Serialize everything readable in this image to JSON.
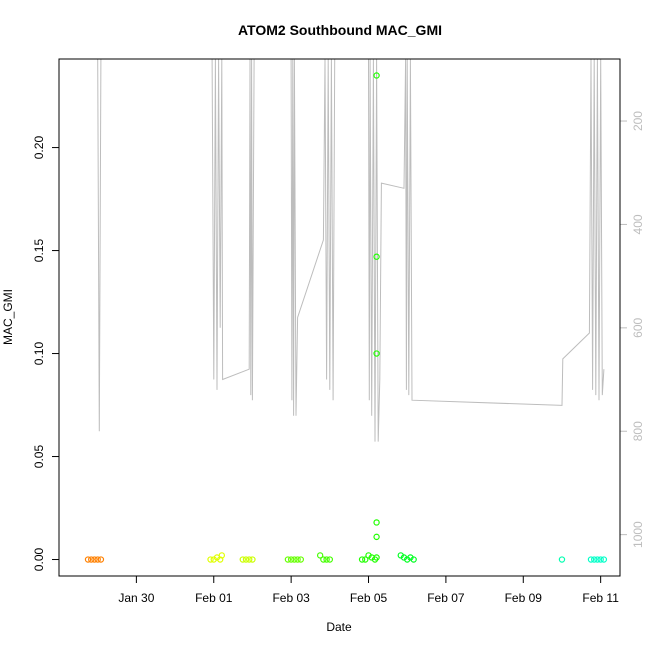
{
  "chart_data": {
    "type": "scatter",
    "title": "ATOM2 Southbound MAC_GMI",
    "xlabel": "Date",
    "ylabel": "MAC_GMI",
    "xlim": [
      "2022-01-28",
      "2022-02-11 12:00"
    ],
    "ylim": [
      -0.008,
      0.243
    ],
    "y_ticks": [
      "0.00",
      "0.05",
      "0.10",
      "0.15",
      "0.20"
    ],
    "x_tick_labels": [
      {
        "date": "2022-01-30",
        "label": "Jan 30"
      },
      {
        "date": "2022-02-01",
        "label": "Feb 01"
      },
      {
        "date": "2022-02-03",
        "label": "Feb 03"
      },
      {
        "date": "2022-02-05",
        "label": "Feb 05"
      },
      {
        "date": "2022-02-07",
        "label": "Feb 07"
      },
      {
        "date": "2022-02-09",
        "label": "Feb 09"
      },
      {
        "date": "2022-02-11",
        "label": "Feb 11"
      }
    ],
    "right_axis": {
      "reversed": true,
      "range": [
        80,
        1080
      ],
      "ticks": [
        "200",
        "400",
        "600",
        "800",
        "1000"
      ]
    },
    "series": [
      {
        "color": "#ff8000",
        "x": [
          "2022-01-28 18:00",
          "2022-01-28 20:00",
          "2022-01-28 22:00",
          "2022-01-29 00:00",
          "2022-01-29 02:00"
        ],
        "y": [
          0,
          0,
          0,
          0,
          0
        ]
      },
      {
        "color": "#e0ff00",
        "x": [
          "2022-01-31 22:00",
          "2022-02-01 00:00",
          "2022-02-01 02:00",
          "2022-02-01 04:00",
          "2022-02-01 05:00"
        ],
        "y": [
          0,
          0,
          0.001,
          0,
          0.002
        ]
      },
      {
        "color": "#ccff00",
        "x": [
          "2022-02-01 18:00",
          "2022-02-01 20:00",
          "2022-02-01 22:00",
          "2022-02-02 00:00"
        ],
        "y": [
          0,
          0,
          0,
          0
        ]
      },
      {
        "color": "#66ff00",
        "x": [
          "2022-02-02 22:00",
          "2022-02-03 00:00",
          "2022-02-03 02:00",
          "2022-02-03 04:00",
          "2022-02-03 06:00"
        ],
        "y": [
          0,
          0,
          0,
          0,
          0
        ]
      },
      {
        "color": "#44ff00",
        "x": [
          "2022-02-03 18:00",
          "2022-02-03 20:00",
          "2022-02-03 22:00",
          "2022-02-04 00:00"
        ],
        "y": [
          0.002,
          0,
          0,
          0
        ]
      },
      {
        "color": "#20ff00",
        "x": [
          "2022-02-04 20:00",
          "2022-02-04 22:00",
          "2022-02-05 00:00",
          "2022-02-05 02:00",
          "2022-02-05 04:00",
          "2022-02-05 05:00",
          "2022-02-05 05:00",
          "2022-02-05 05:00",
          "2022-02-05 05:00",
          "2022-02-05 05:00",
          "2022-02-05 05:00"
        ],
        "y": [
          0,
          0,
          0.002,
          0.001,
          0,
          0.001,
          0.011,
          0.018,
          0.1,
          0.147,
          0.235
        ]
      },
      {
        "color": "#00ff22",
        "x": [
          "2022-02-05 20:00",
          "2022-02-05 22:00",
          "2022-02-06 00:00",
          "2022-02-06 02:00",
          "2022-02-06 04:00"
        ],
        "y": [
          0.002,
          0.001,
          0,
          0.001,
          0
        ]
      },
      {
        "color": "#00ffb0",
        "x": [
          "2022-02-10 00:00"
        ],
        "y": [
          0
        ]
      },
      {
        "color": "#00ffc8",
        "x": [
          "2022-02-10 18:00",
          "2022-02-10 20:00",
          "2022-02-10 22:00",
          "2022-02-11 00:00",
          "2022-02-11 02:00"
        ],
        "y": [
          0,
          0,
          0,
          0,
          0
        ]
      }
    ],
    "depth_line": {
      "color": "#bdbdbd",
      "axis": "right",
      "points": [
        [
          "2022-01-29 00:00",
          80
        ],
        [
          "2022-01-29 01:00",
          800
        ],
        [
          "2022-01-29 02:00",
          80
        ],
        [
          "2022-01-31 23:00",
          80
        ],
        [
          "2022-02-01 00:00",
          700
        ],
        [
          "2022-02-01 01:00",
          80
        ],
        [
          "2022-02-01 02:00",
          720
        ],
        [
          "2022-02-01 03:00",
          80
        ],
        [
          "2022-02-01 04:00",
          600
        ],
        [
          "2022-02-01 05:00",
          80
        ],
        [
          "2022-02-01 05:30",
          700
        ],
        [
          "2022-02-01 22:00",
          680
        ],
        [
          "2022-02-01 22:30",
          80
        ],
        [
          "2022-02-01 23:00",
          730
        ],
        [
          "2022-02-01 23:30",
          80
        ],
        [
          "2022-02-02 00:00",
          740
        ],
        [
          "2022-02-02 01:00",
          80
        ],
        [
          "2022-02-03 00:00",
          80
        ],
        [
          "2022-02-03 00:30",
          740
        ],
        [
          "2022-02-03 01:00",
          80
        ],
        [
          "2022-02-03 01:30",
          770
        ],
        [
          "2022-02-03 02:00",
          80
        ],
        [
          "2022-02-03 03:00",
          770
        ],
        [
          "2022-02-03 04:00",
          580
        ],
        [
          "2022-02-03 20:00",
          430
        ],
        [
          "2022-02-03 21:00",
          80
        ],
        [
          "2022-02-03 22:00",
          700
        ],
        [
          "2022-02-03 23:00",
          80
        ],
        [
          "2022-02-04 00:00",
          720
        ],
        [
          "2022-02-04 01:00",
          80
        ],
        [
          "2022-02-04 02:00",
          740
        ],
        [
          "2022-02-04 03:00",
          80
        ],
        [
          "2022-02-05 00:00",
          80
        ],
        [
          "2022-02-05 00:30",
          740
        ],
        [
          "2022-02-05 01:00",
          80
        ],
        [
          "2022-02-05 02:00",
          770
        ],
        [
          "2022-02-05 03:00",
          80
        ],
        [
          "2022-02-05 04:00",
          820
        ],
        [
          "2022-02-05 05:00",
          80
        ],
        [
          "2022-02-05 06:00",
          820
        ],
        [
          "2022-02-05 07:00",
          700
        ],
        [
          "2022-02-05 08:00",
          320
        ],
        [
          "2022-02-05 22:00",
          330
        ],
        [
          "2022-02-05 23:00",
          80
        ],
        [
          "2022-02-05 23:30",
          720
        ],
        [
          "2022-02-06 00:00",
          80
        ],
        [
          "2022-02-06 01:00",
          730
        ],
        [
          "2022-02-06 02:00",
          80
        ],
        [
          "2022-02-06 03:00",
          740
        ],
        [
          "2022-02-10 00:00",
          750
        ],
        [
          "2022-02-10 00:30",
          660
        ],
        [
          "2022-02-10 17:00",
          610
        ],
        [
          "2022-02-10 18:00",
          80
        ],
        [
          "2022-02-10 19:00",
          720
        ],
        [
          "2022-02-10 20:00",
          80
        ],
        [
          "2022-02-10 21:00",
          730
        ],
        [
          "2022-02-10 22:00",
          80
        ],
        [
          "2022-02-10 23:00",
          740
        ],
        [
          "2022-02-11 00:00",
          80
        ],
        [
          "2022-02-11 01:00",
          730
        ],
        [
          "2022-02-11 02:00",
          680
        ]
      ]
    }
  }
}
